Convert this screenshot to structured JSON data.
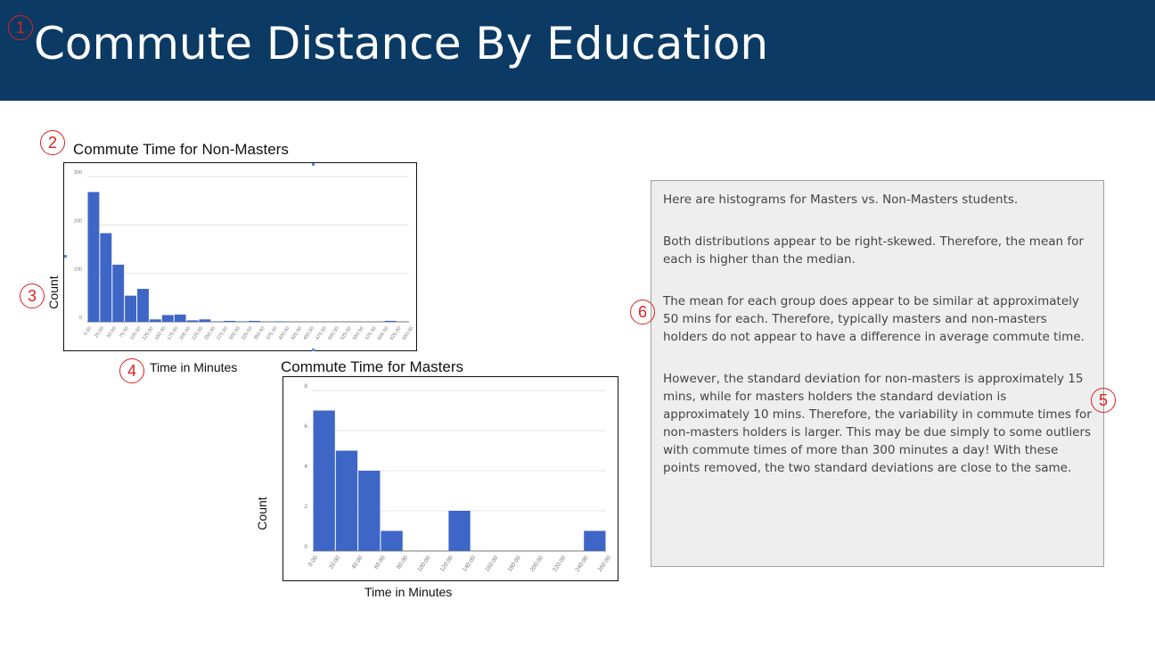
{
  "header": {
    "title": "Commute Distance By Education",
    "background": "#0b3a64"
  },
  "markers": [
    "1",
    "2",
    "3",
    "4",
    "5",
    "6"
  ],
  "non_masters": {
    "title": "Commute Time for Non-Masters",
    "xlabel": "Time in Minutes",
    "ylabel": "Count"
  },
  "masters": {
    "title": "Commute Time for Masters",
    "xlabel": "Time in Minutes",
    "ylabel": "Count"
  },
  "notes": {
    "p1": "Here are histograms for Masters vs. Non-Masters students.",
    "p2": "Both distributions appear to be right-skewed.   Therefore, the mean for each is higher than the median.",
    "p3": "The mean for each group does appear to be similar at approximately 50 mins for each.  Therefore, typically masters and non-masters holders do not appear to have a difference in average commute time.",
    "p4": "However, the standard deviation for non-masters is approximately 15 mins, while for masters holders the standard deviation is approximately 10 mins. Therefore, the variability in commute times for non-masters holders is larger.  This may be due simply to some outliers with commute times of more than 300 minutes a day!  With these points removed, the two standard deviations are close to the same."
  },
  "chart_data": [
    {
      "type": "bar",
      "title": "Commute Time for Non-Masters",
      "xlabel": "Time in Minutes",
      "ylabel": "Count",
      "bar_color": "#3d66c6",
      "ylim": [
        0,
        300
      ],
      "yticks": [
        "0",
        "100",
        "200",
        "300"
      ],
      "bin_edges": [
        0,
        25,
        50,
        75,
        100,
        125,
        150,
        175,
        200,
        225,
        250,
        275,
        300,
        325,
        350,
        375,
        400,
        425,
        450,
        475,
        500,
        525,
        550,
        575,
        600,
        625,
        650
      ],
      "xticks": [
        "0.00",
        "25.00",
        "50.00",
        "75.00",
        "100.00",
        "125.00",
        "150.00",
        "175.00",
        "200.00",
        "225.00",
        "250.00",
        "275.00",
        "300.00",
        "325.00",
        "350.00",
        "375.00",
        "400.00",
        "425.00",
        "450.00",
        "475.00",
        "500.00",
        "525.00",
        "550.00",
        "575.00",
        "600.00",
        "625.00",
        "650.00"
      ],
      "values": [
        268,
        183,
        118,
        54,
        68,
        5,
        14,
        15,
        3,
        5,
        1,
        2,
        1,
        2,
        0,
        1,
        0,
        0,
        0,
        0,
        0,
        0,
        0,
        0,
        2,
        0
      ]
    },
    {
      "type": "bar",
      "title": "Commute Time for Masters",
      "xlabel": "Time in Minutes",
      "ylabel": "Count",
      "bar_color": "#3d66c6",
      "ylim": [
        0,
        8
      ],
      "yticks": [
        "0",
        "2",
        "4",
        "6",
        "8"
      ],
      "bin_edges": [
        0,
        20,
        40,
        60,
        80,
        100,
        120,
        140,
        160,
        180,
        200,
        220,
        240,
        260
      ],
      "xticks": [
        "0.00",
        "20.00",
        "40.00",
        "60.00",
        "80.00",
        "100.00",
        "120.00",
        "140.00",
        "160.00",
        "180.00",
        "200.00",
        "220.00",
        "240.00",
        "260.00"
      ],
      "values": [
        7,
        5,
        4,
        1,
        0,
        0,
        2,
        0,
        0,
        0,
        0,
        0,
        1
      ]
    }
  ]
}
